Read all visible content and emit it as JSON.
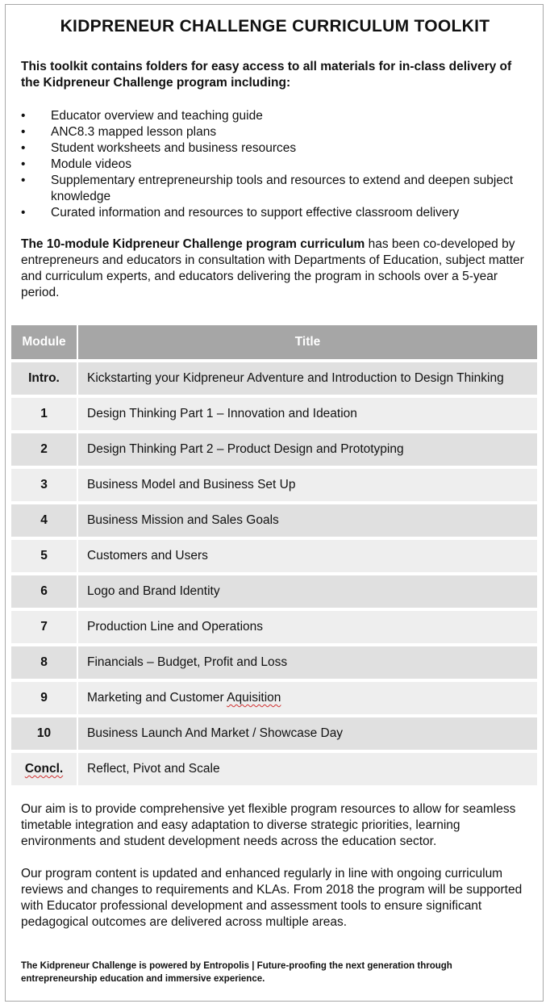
{
  "title": "KIDPRENEUR CHALLENGE CURRICULUM TOOLKIT",
  "intro": "This toolkit contains folders for easy access to all materials for in-class delivery of the Kidpreneur Challenge program including:",
  "bullets": [
    "Educator overview and teaching guide",
    "ANC8.3 mapped lesson plans",
    "Student worksheets and business resources",
    "Module videos",
    "Supplementary entrepreneurship tools and resources to extend and deepen subject knowledge",
    "Curated information and resources to support effective classroom delivery"
  ],
  "bullet_glyph": "•",
  "para1_bold": "The 10-module Kidpreneur Challenge program curriculum",
  "para1_rest": " has been co-developed by entrepreneurs and educators in consultation with Departments of Education, subject matter and curriculum experts, and educators delivering the program in schools over a 5-year period.",
  "table": {
    "headers": [
      "Module",
      "Title"
    ],
    "rows": [
      {
        "module": "Intro.",
        "title": "Kickstarting your Kidpreneur Adventure and Introduction to Design Thinking"
      },
      {
        "module": "1",
        "title": "Design Thinking Part 1 – Innovation and Ideation"
      },
      {
        "module": "2",
        "title": "Design Thinking Part 2 – Product Design and Prototyping"
      },
      {
        "module": "3",
        "title": "Business Model and Business Set Up"
      },
      {
        "module": "4",
        "title": "Business Mission and Sales Goals"
      },
      {
        "module": "5",
        "title": "Customers and Users"
      },
      {
        "module": "6",
        "title": "Logo and Brand Identity"
      },
      {
        "module": "7",
        "title": "Production Line and Operations"
      },
      {
        "module": "8",
        "title": "Financials – Budget, Profit and Loss"
      },
      {
        "module": "9",
        "title_pre": "Marketing and Customer ",
        "title_flag": "Aquisition"
      },
      {
        "module": "10",
        "title": "Business Launch And Market / Showcase Day"
      },
      {
        "module": "Concl.",
        "title": "Reflect, Pivot and Scale"
      }
    ]
  },
  "para2": "Our aim is to provide comprehensive yet flexible program resources to allow for seamless timetable integration and easy adaptation to diverse strategic priorities, learning environments and student development needs across the education sector.",
  "para3": "Our program content is updated and enhanced regularly in line with ongoing curriculum reviews and changes to requirements and KLAs. From 2018 the program will be supported with Educator professional development and assessment tools to ensure significant pedagogical outcomes are delivered across multiple areas.",
  "footer": "The Kidpreneur Challenge is powered by Entropolis | Future-proofing the next generation through entrepreneurship education and immersive experience.",
  "colors": {
    "header_bg": "#a6a6a6",
    "row_dark": "#e0e0e0",
    "row_light": "#eeeeee",
    "spellcheck": "#d03030"
  }
}
